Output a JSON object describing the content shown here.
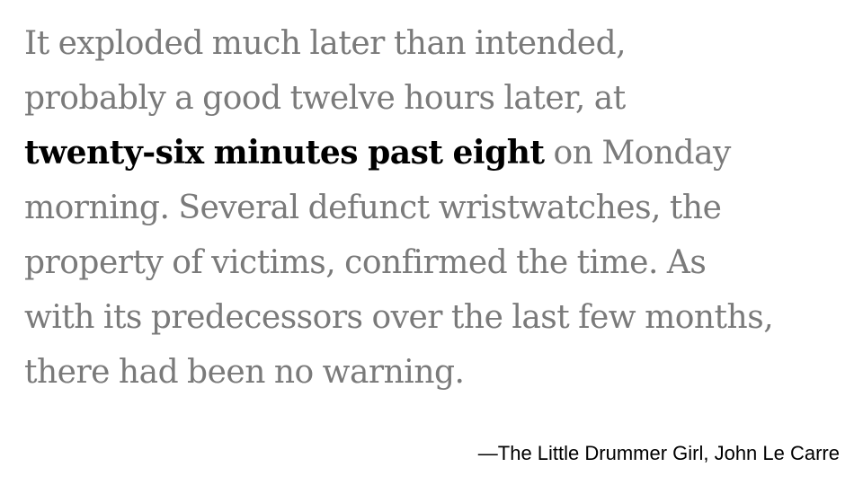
{
  "quote": {
    "lines": [
      "It exploded much later than intended,",
      "probably a good twelve hours later, at",
      "twenty-six minutes past eight",
      "on Monday",
      "morning. Several defunct wristwatches, the",
      "property of victims, confirmed the time. As",
      "with its predecessors over the last few months,",
      "there had been no warning."
    ]
  },
  "attribution": {
    "text": "—The Little Drummer Girl, John Le Carre"
  },
  "colors": {
    "body_text": "#7a7a7a",
    "emphasis_text": "#000000",
    "background": "#ffffff"
  }
}
